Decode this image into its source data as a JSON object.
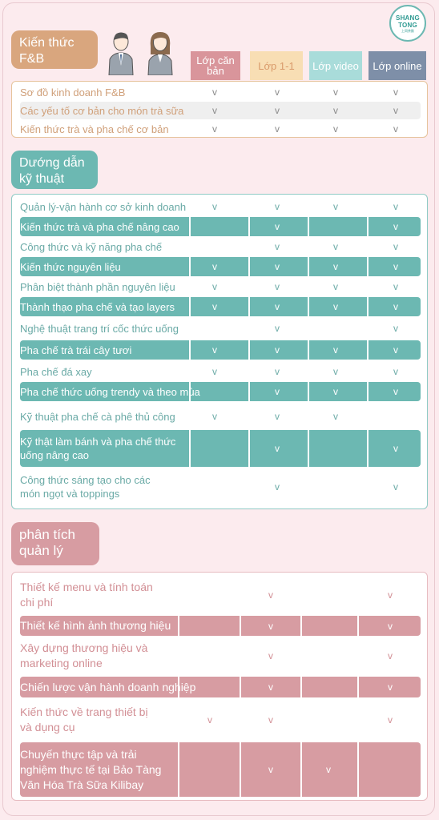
{
  "logo": {
    "line1": "SHANG",
    "line2": "TONG",
    "line3": "上同茶飲"
  },
  "columns": [
    "Lớp căn bản",
    "Lớp 1-1",
    "Lớp video",
    "Lớp online"
  ],
  "sections": [
    {
      "title": "Kiến thức F&B",
      "rows": [
        {
          "label": "Sơ đồ kinh doanh F&B",
          "checks": [
            "v",
            "v",
            "v",
            "v"
          ]
        },
        {
          "label": "Các yếu tố cơ bản cho món trà sữa",
          "checks": [
            "v",
            "v",
            "v",
            "v"
          ]
        },
        {
          "label": "Kiến thức trà và pha chế cơ bản",
          "checks": [
            "v",
            "v",
            "v",
            "v"
          ]
        }
      ]
    },
    {
      "title": "Dướng dẫn kỹ thuật",
      "rows": [
        {
          "label": "Quản lý-vận hành cơ sở kinh doanh",
          "checks": [
            "v",
            "v",
            "v",
            "v"
          ]
        },
        {
          "label": "Kiến thức trà và pha chế nâng cao",
          "checks": [
            "",
            "v",
            "",
            "v"
          ]
        },
        {
          "label": "Công thức và kỹ năng pha chế",
          "checks": [
            "",
            "v",
            "v",
            "v"
          ]
        },
        {
          "label": "Kiến thức nguyên liệu",
          "checks": [
            "v",
            "v",
            "v",
            "v"
          ]
        },
        {
          "label": "Phân biệt thành phần nguyên liệu",
          "checks": [
            "v",
            "v",
            "v",
            "v"
          ]
        },
        {
          "label": "Thành thạo pha chế và tạo layers",
          "checks": [
            "v",
            "v",
            "v",
            "v"
          ]
        },
        {
          "label": "Nghệ thuật trang trí cốc thức uống",
          "checks": [
            "",
            "v",
            "",
            "v"
          ]
        },
        {
          "label": "Pha chế trà trái cây tươi",
          "checks": [
            "v",
            "v",
            "v",
            "v"
          ]
        },
        {
          "label": "Pha chế đá xay",
          "checks": [
            "v",
            "v",
            "v",
            "v"
          ]
        },
        {
          "label": "Pha chế thức uống trendy và theo mùa",
          "checks": [
            "",
            "v",
            "v",
            "v"
          ]
        },
        {
          "label": "Kỹ thuật pha chế cà phê thủ công",
          "checks": [
            "v",
            "v",
            "v",
            ""
          ]
        },
        {
          "label": "Kỹ thật làm bánh và pha chế thức uống nâng cao",
          "checks": [
            "",
            "v",
            "",
            "v"
          ]
        },
        {
          "label": "Công thức sáng tạo cho các món ngọt và toppings",
          "checks": [
            "",
            "v",
            "",
            "v"
          ]
        }
      ]
    },
    {
      "title": "phân tích quản lý",
      "rows": [
        {
          "label": "Thiết kế menu và tính toán chi phí",
          "checks": [
            "",
            "v",
            "",
            "v"
          ]
        },
        {
          "label": "Thiết kế hình ảnh thương hiệu",
          "checks": [
            "",
            "v",
            "",
            "v"
          ]
        },
        {
          "label": "Xây dựng thương hiệu và marketing online",
          "checks": [
            "",
            "v",
            "",
            "v"
          ]
        },
        {
          "label": "Chiến lược vận hành doanh nghiệp",
          "checks": [
            "",
            "v",
            "",
            "v"
          ]
        },
        {
          "label": "Kiến thức về trang thiết bị và dụng cụ",
          "checks": [
            "v",
            "v",
            "",
            "v"
          ]
        },
        {
          "label": "Chuyến thực tập và trải nghiệm thực tế tại Bảo Tàng Văn Hóa Trà Sữa Kilibay",
          "checks": [
            "",
            "v",
            "v",
            ""
          ]
        }
      ]
    }
  ],
  "colors": {
    "background": "#fcebee",
    "section1": "#d9a67e",
    "section2": "#6cb8b2",
    "section3": "#d79ca2",
    "col_basic": "#d9959b",
    "col_1on1": "#f8deb4",
    "col_video": "#a9dcda",
    "col_online": "#7e8fa8"
  }
}
